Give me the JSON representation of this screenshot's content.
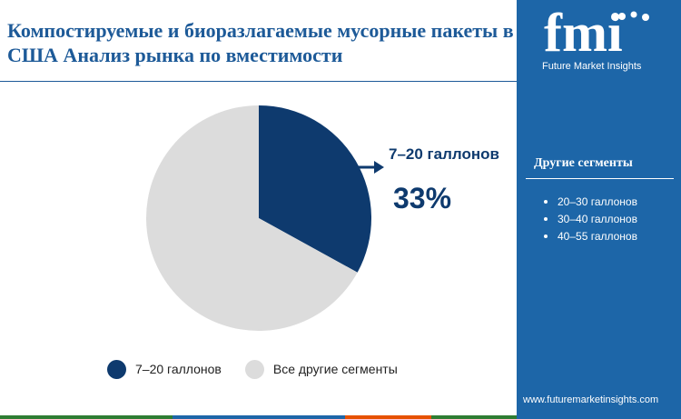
{
  "title": "Компостируемые и биоразлагаемые мусорные пакеты в США Анализ рынка по вместимости",
  "chart_data": {
    "type": "pie",
    "slices": [
      {
        "label": "7–20 галлонов",
        "value": 33,
        "color": "#0e3a6e"
      },
      {
        "label": "Все другие сегменты",
        "value": 67,
        "color": "#dcdcdc"
      }
    ],
    "callout": {
      "label": "7–20 галлонов",
      "value_text": "33%"
    },
    "legend_position": "bottom"
  },
  "sidebar": {
    "logo_text": "fmi",
    "logo_subtitle": "Future Market Insights",
    "segments_title": "Другие сегменты",
    "segments": [
      "20–30 галлонов",
      "30–40 галлонов",
      "40–55 галлонов"
    ],
    "website": "www.futuremarketinsights.com",
    "background_color": "#1d66a8"
  },
  "bottom_bar_colors": [
    "#2e7d32",
    "#1d66a8",
    "#e65100",
    "#2e7d32"
  ]
}
